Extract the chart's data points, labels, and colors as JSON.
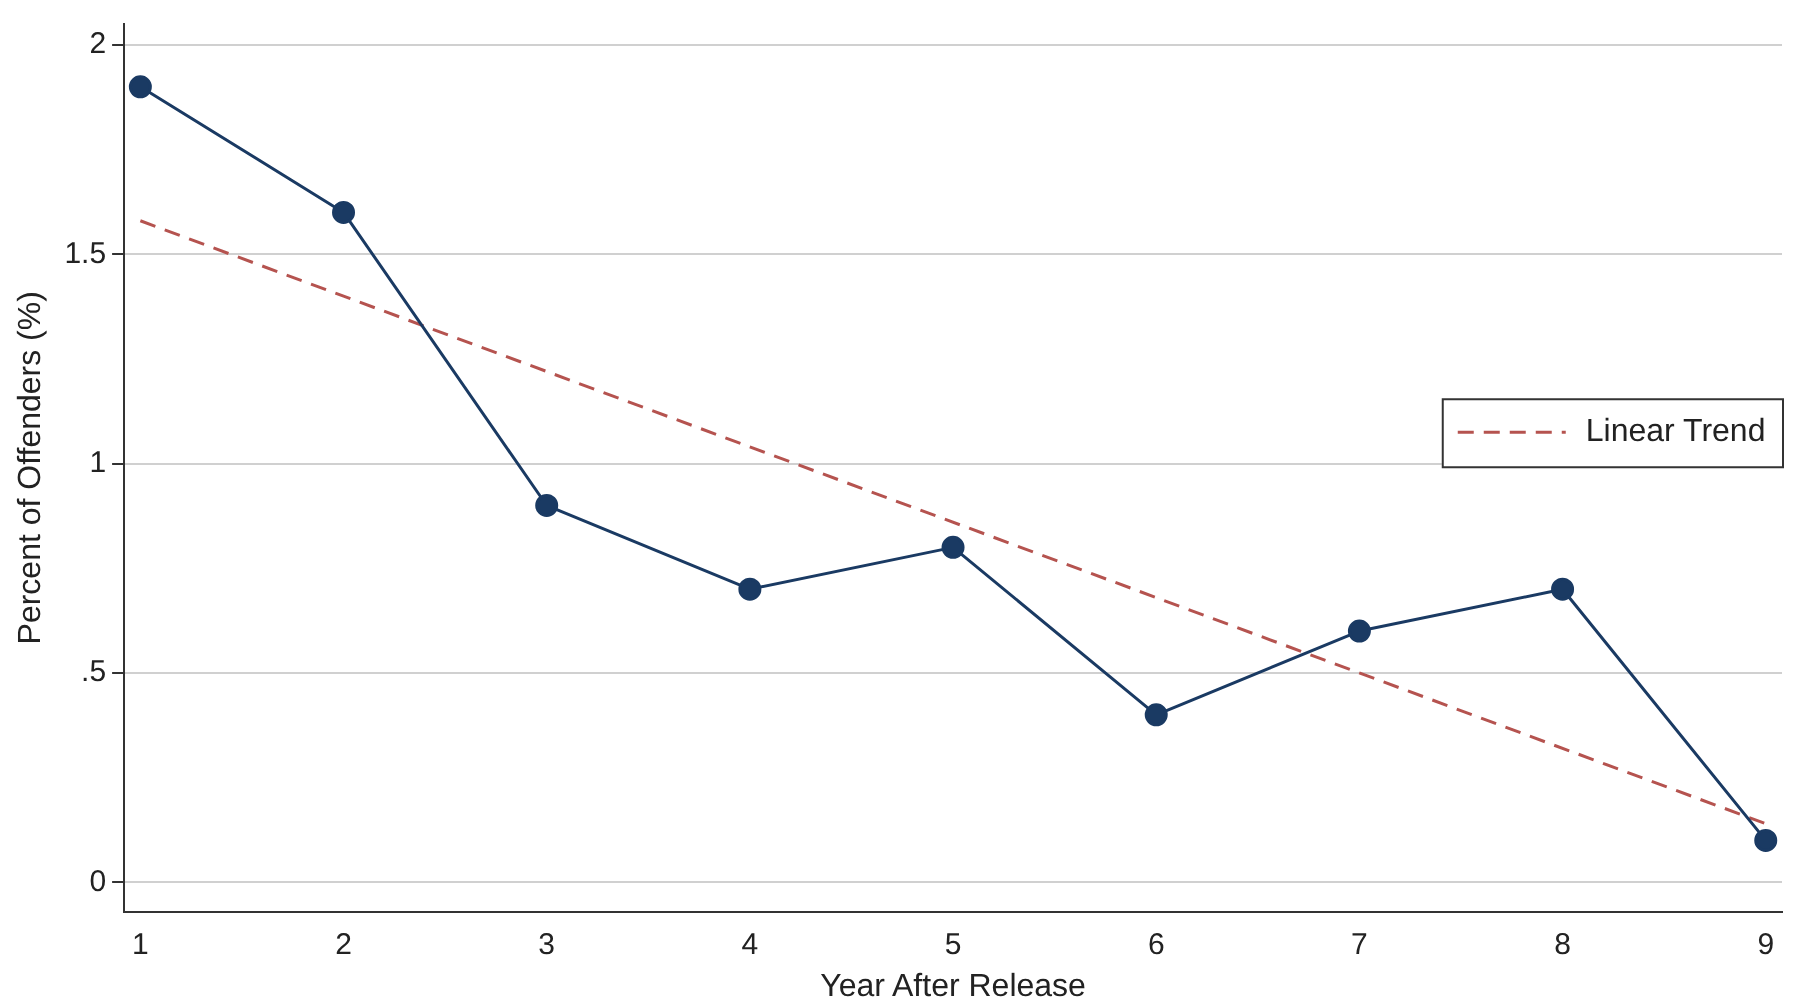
{
  "chart_data": {
    "type": "line",
    "xlabel": "Year After Release",
    "ylabel": "Percent of Offenders (%)",
    "x": [
      1,
      2,
      3,
      4,
      5,
      6,
      7,
      8,
      9
    ],
    "xlim": [
      0.92,
      9.08
    ],
    "xticks": [
      1,
      2,
      3,
      4,
      5,
      6,
      7,
      8,
      9
    ],
    "ylim": [
      -0.07,
      2.05
    ],
    "yticks": [
      0,
      {
        "value": 0.5,
        "label": ".5"
      },
      1,
      1.5,
      2
    ],
    "grid": "y",
    "legend": "right",
    "marker": "circle",
    "line_style": "solid",
    "series": [
      {
        "color": "#1a3a63",
        "values": [
          1.9,
          1.6,
          0.9,
          0.7,
          0.8,
          0.4,
          0.6,
          0.7,
          0.1
        ]
      },
      {
        "name": "Linear Trend",
        "type": "line",
        "color": "#b5534f",
        "x": [
          1,
          9
        ],
        "values": [
          1.58,
          0.14
        ],
        "line_style": "dashed",
        "marker": "none"
      }
    ]
  }
}
